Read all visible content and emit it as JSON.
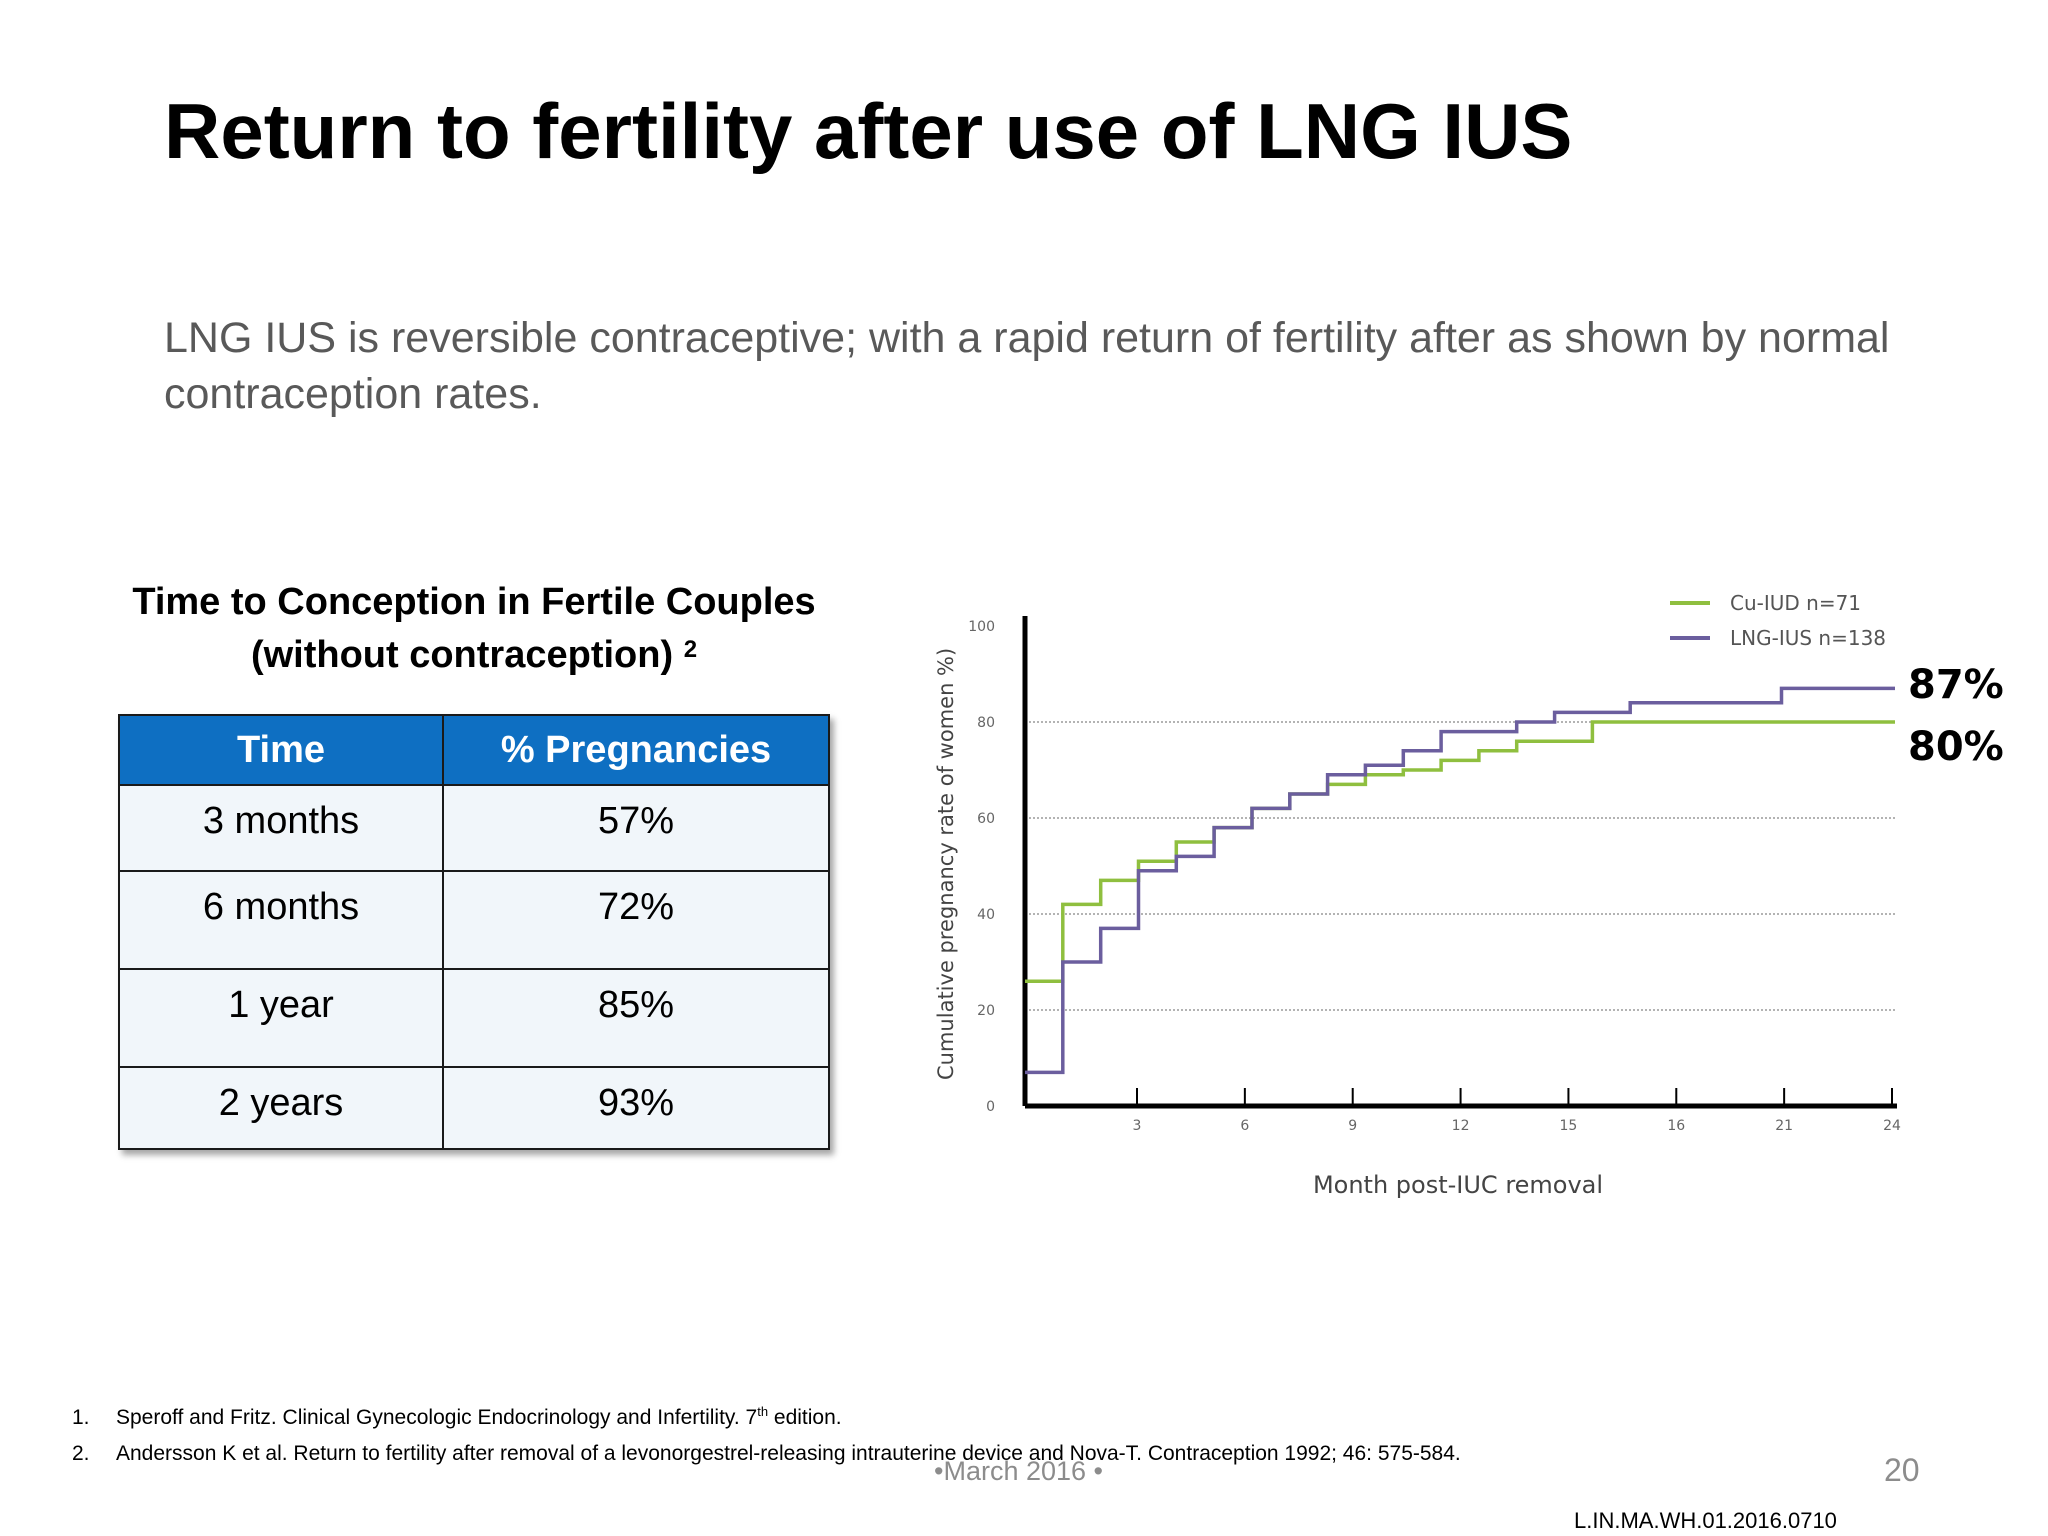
{
  "slide": {
    "title": "Return to fertility after use of LNG IUS",
    "subtitle": "LNG IUS is reversible contraceptive; with a rapid return of fertility after as shown by normal contraception rates."
  },
  "table": {
    "caption_line1": "Time to Conception in Fertile Couples",
    "caption_line2": "(without contraception)",
    "caption_ref": "2",
    "headers": [
      "Time",
      "% Pregnancies"
    ],
    "rows": [
      {
        "time": "3 months",
        "pct": "57%"
      },
      {
        "time": "6 months",
        "pct": "72%"
      },
      {
        "time": "1 year",
        "pct": "85%"
      },
      {
        "time": "2 years",
        "pct": "93%"
      }
    ],
    "header_color": "#0e6fc2"
  },
  "chart_data": {
    "type": "line",
    "step": true,
    "title": "",
    "xlabel": "Month post-IUC removal",
    "ylabel": "Cumulative pregnancy rate of women %)",
    "x_ticks": [
      "3",
      "6",
      "9",
      "12",
      "15",
      "16",
      "21",
      "24"
    ],
    "y_ticks": [
      "0",
      "20",
      "40",
      "60",
      "80",
      "100"
    ],
    "ylim": [
      0,
      100
    ],
    "grid": "horizontal dotted",
    "legend_position": "top-right",
    "series": [
      {
        "name": "Cu-IUD n=71",
        "color": "#8fbf3f",
        "x": [
          1,
          2,
          2,
          3,
          3,
          4,
          4,
          5,
          5,
          6,
          6,
          7,
          7,
          8,
          8,
          9,
          9,
          10,
          10,
          11,
          11,
          12,
          12,
          13,
          13,
          14,
          14,
          16,
          16,
          18,
          18,
          24
        ],
        "y": [
          26,
          26,
          42,
          42,
          47,
          47,
          51,
          51,
          55,
          55,
          58,
          58,
          62,
          62,
          65,
          65,
          67,
          67,
          69,
          69,
          70,
          70,
          72,
          72,
          74,
          74,
          76,
          76,
          80,
          80,
          80,
          80
        ]
      },
      {
        "name": "LNG-IUS n=138",
        "color": "#6b5e9e",
        "x": [
          1,
          2,
          2,
          3,
          3,
          4,
          4,
          5,
          5,
          6,
          6,
          7,
          7,
          8,
          8,
          9,
          9,
          10,
          10,
          11,
          11,
          12,
          12,
          14,
          14,
          15,
          15,
          17,
          17,
          21,
          21,
          24
        ],
        "y": [
          7,
          7,
          30,
          30,
          37,
          37,
          49,
          49,
          52,
          52,
          58,
          58,
          62,
          62,
          65,
          65,
          69,
          69,
          71,
          71,
          74,
          74,
          78,
          78,
          80,
          80,
          82,
          82,
          84,
          84,
          87,
          87
        ]
      }
    ],
    "end_labels": [
      "87%",
      "80%"
    ]
  },
  "references": [
    {
      "num": "1.",
      "text": "Speroff and Fritz. Clinical Gynecologic Endocrinology and Infertility. 7",
      "sup": "th",
      "tail": " edition."
    },
    {
      "num": "2.",
      "text": "Andersson K et al. Return to fertility after removal of a levonorgestrel-releasing intrauterine device and Nova-T. Contraception 1992; 46: 575-584.",
      "sup": "",
      "tail": ""
    }
  ],
  "footer": {
    "date": "•March 2016 •",
    "page": "20",
    "code": "L.IN.MA.WH.01.2016.0710"
  }
}
